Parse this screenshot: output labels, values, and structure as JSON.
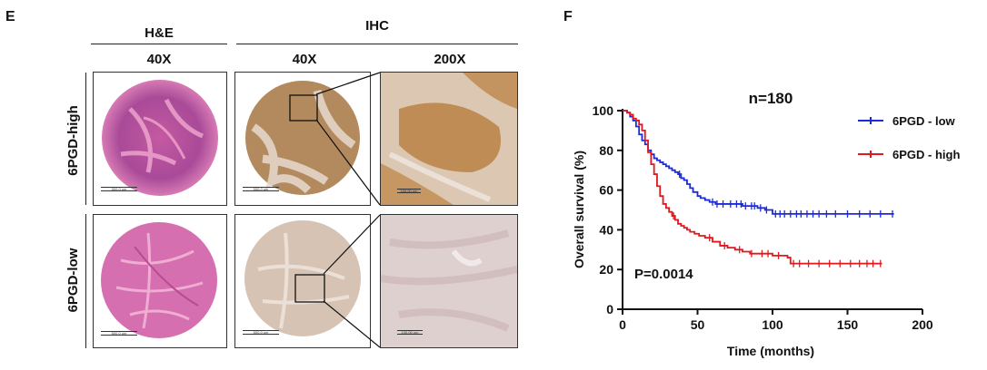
{
  "panel_e": {
    "letter": "E",
    "col_groups": [
      "H&E",
      "IHC"
    ],
    "magnifications": [
      "40X",
      "40X",
      "200X"
    ],
    "row_labels": [
      "6PGD-high",
      "6PGD-low"
    ],
    "scalebars": [
      "500.0 um",
      "500.0 um",
      "100.00 um",
      "500.0 um",
      "500.0 um",
      "100.00 um"
    ],
    "colors": {
      "he": "#d96aa6",
      "he_dark": "#b2458b",
      "ihc_high": "#b58a5f",
      "ihc_low": "#d7c6b8",
      "zoom_high": "#c79a63",
      "zoom_low": "#d9cfd8"
    }
  },
  "panel_f": {
    "letter": "F",
    "chart_data": {
      "type": "line",
      "title": "n=180",
      "xlabel": "Time (months)",
      "ylabel": "Overall survival (%)",
      "xlim": [
        0,
        200
      ],
      "ylim": [
        0,
        100
      ],
      "xticks": [
        0,
        50,
        100,
        150,
        200
      ],
      "yticks": [
        0,
        20,
        40,
        60,
        80,
        100
      ],
      "annotation": "P=0.0014",
      "legend_position": "top-right",
      "series": [
        {
          "name": "6PGD - low",
          "color": "#1c2bd9",
          "x": [
            0,
            3,
            5,
            7,
            9,
            11,
            13,
            15,
            17,
            19,
            21,
            23,
            25,
            27,
            29,
            31,
            33,
            35,
            37,
            39,
            41,
            43,
            45,
            47,
            50,
            52,
            55,
            58,
            62,
            66,
            70,
            75,
            80,
            85,
            90,
            95,
            100,
            110,
            120,
            140,
            160,
            181
          ],
          "y": [
            100,
            99,
            97,
            95,
            92,
            88,
            85,
            83,
            80,
            78,
            76,
            75,
            74,
            73,
            72,
            71,
            70,
            69,
            68,
            66,
            65,
            63,
            61,
            59,
            57,
            56,
            55,
            54,
            53,
            53,
            53,
            53,
            52,
            52,
            51,
            50,
            48,
            48,
            48,
            48,
            48,
            48
          ],
          "censored_x": [
            38,
            60,
            63,
            67,
            72,
            76,
            79,
            82,
            86,
            88,
            92,
            96,
            102,
            105,
            108,
            112,
            116,
            119,
            123,
            127,
            131,
            136,
            142,
            150,
            158,
            165,
            172,
            180
          ]
        },
        {
          "name": "6PGD - high",
          "color": "#e0191e",
          "x": [
            0,
            3,
            5,
            7,
            9,
            11,
            13,
            15,
            17,
            19,
            21,
            23,
            25,
            27,
            29,
            31,
            33,
            35,
            37,
            39,
            41,
            43,
            45,
            48,
            51,
            55,
            60,
            65,
            70,
            75,
            80,
            85,
            90,
            95,
            100,
            105,
            110,
            112,
            120,
            140,
            160,
            173
          ],
          "y": [
            100,
            99,
            98,
            96,
            95,
            93,
            90,
            85,
            79,
            73,
            68,
            62,
            57,
            53,
            51,
            49,
            47,
            45,
            43,
            42,
            41,
            40,
            39,
            38,
            37,
            36,
            34,
            32,
            31,
            30,
            29,
            28,
            28,
            28,
            27,
            27,
            26,
            23,
            23,
            23,
            23,
            23
          ],
          "censored_x": [
            34,
            58,
            68,
            78,
            86,
            93,
            97,
            104,
            114,
            118,
            124,
            131,
            138,
            145,
            152,
            158,
            163,
            167,
            172
          ]
        }
      ]
    }
  }
}
